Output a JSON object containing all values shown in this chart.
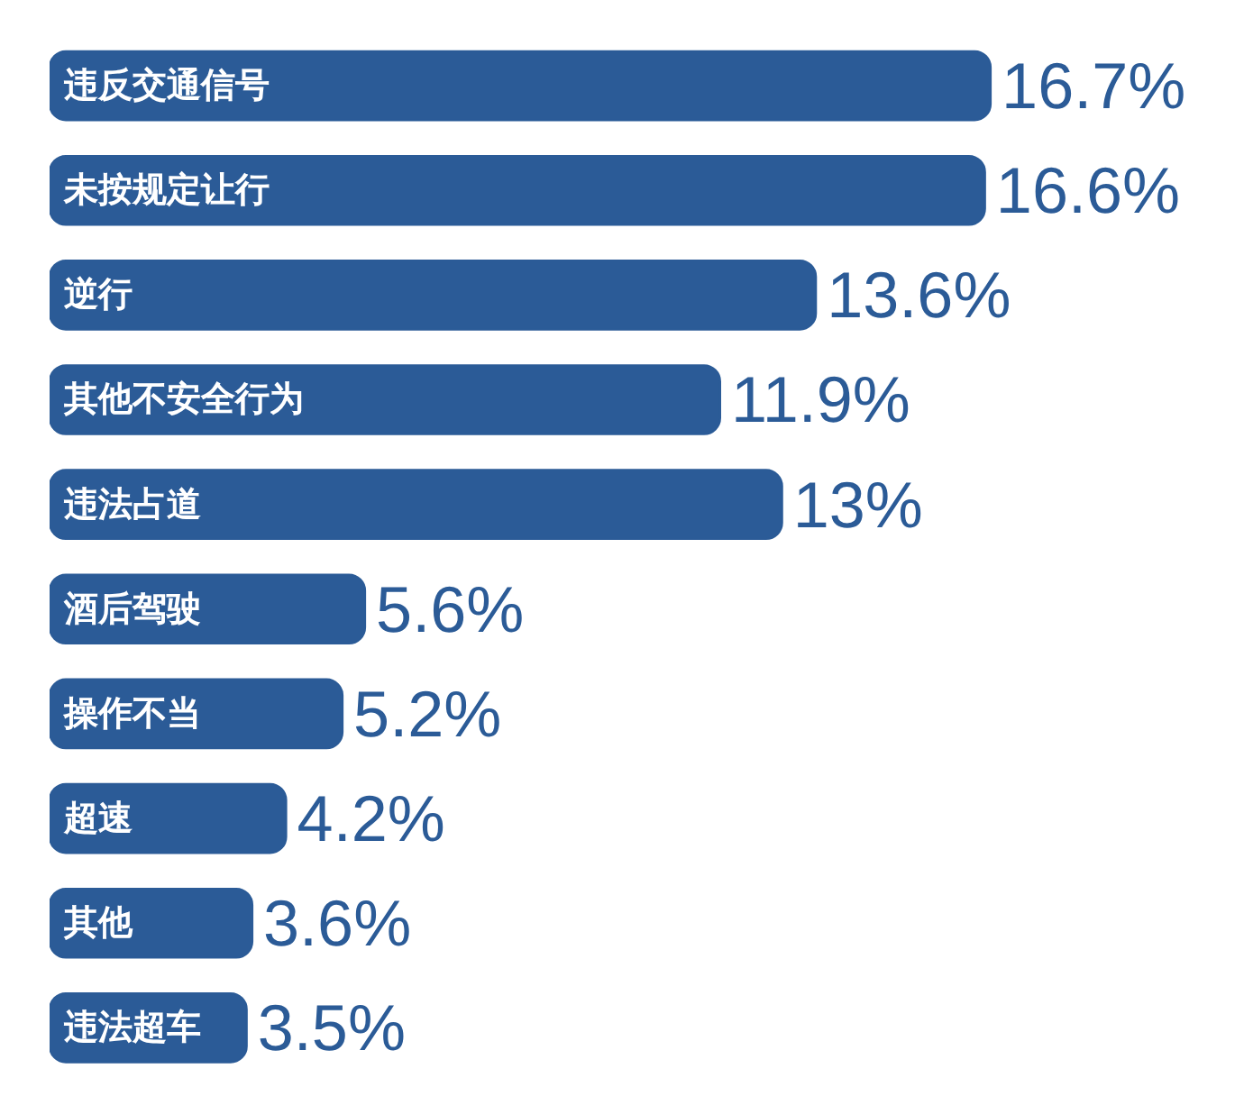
{
  "chart_data": {
    "type": "bar",
    "orientation": "horizontal",
    "categories": [
      "违反交通信号",
      "未按规定让行",
      "逆行",
      "其他不安全行为",
      "违法占道",
      "酒后驾驶",
      "操作不当",
      "超速",
      "其他",
      "违法超车"
    ],
    "values": [
      16.7,
      16.6,
      13.6,
      11.9,
      13,
      5.6,
      5.2,
      4.2,
      3.6,
      3.5
    ],
    "value_labels": [
      "16.7%",
      "16.6%",
      "13.6%",
      "11.9%",
      "13%",
      "5.6%",
      "5.2%",
      "4.2%",
      "3.6%",
      "3.5%"
    ],
    "color": "#2b5b97"
  }
}
